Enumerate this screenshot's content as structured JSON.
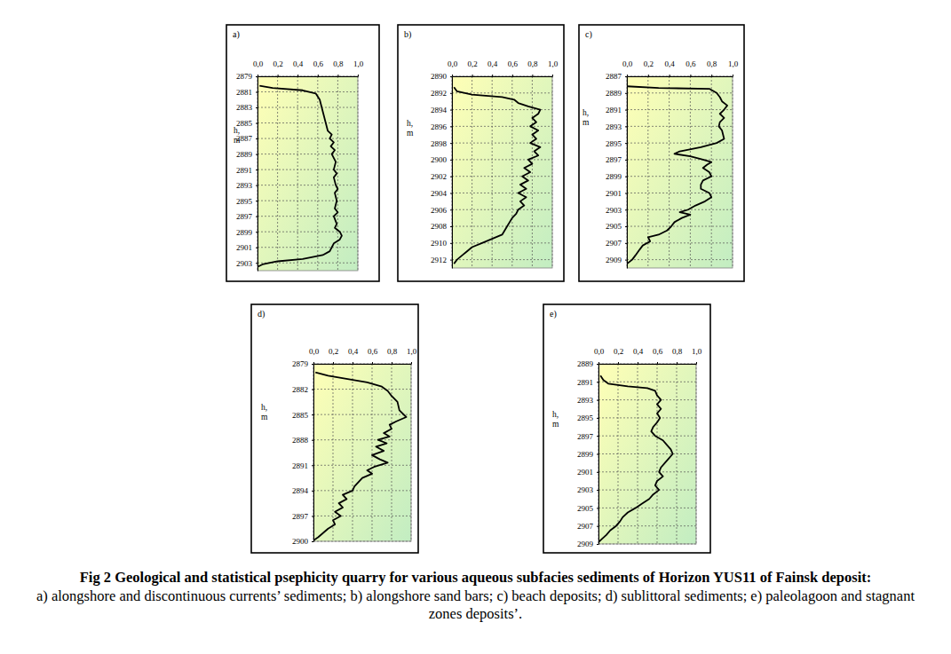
{
  "chart_data": [
    {
      "type": "line",
      "title": "a)",
      "y_label": "h,\nm",
      "color": "#000000",
      "grid": true,
      "xlim": [
        0,
        1
      ],
      "xticks": [
        {
          "value": 0,
          "label": "0,0"
        },
        {
          "value": 0.2,
          "label": "0,2"
        },
        {
          "value": 0.4,
          "label": "0,4"
        },
        {
          "value": 0.6,
          "label": "0,6"
        },
        {
          "value": 0.8,
          "label": "0,8"
        },
        {
          "value": 1,
          "label": "1,0"
        }
      ],
      "ylim": [
        2879,
        2904
      ],
      "yticks": [
        2879,
        2881,
        2883,
        2885,
        2887,
        2889,
        2891,
        2893,
        2895,
        2897,
        2899,
        2901,
        2903
      ],
      "x": [
        0.02,
        0.15,
        0.45,
        0.58,
        0.62,
        0.64,
        0.66,
        0.68,
        0.7,
        0.74,
        0.72,
        0.76,
        0.73,
        0.77,
        0.74,
        0.78,
        0.76,
        0.79,
        0.76,
        0.78,
        0.8,
        0.77,
        0.79,
        0.77,
        0.8,
        0.76,
        0.79,
        0.77,
        0.82,
        0.84,
        0.82,
        0.76,
        0.74,
        0.72,
        0.65,
        0.45,
        0.2,
        0.05,
        0.0
      ],
      "values": [
        2880.2,
        2880.5,
        2880.8,
        2881.2,
        2882,
        2883,
        2884,
        2885,
        2886,
        2886.5,
        2887,
        2887.5,
        2888,
        2888.5,
        2889,
        2890,
        2891,
        2891.5,
        2892,
        2893,
        2893.5,
        2894,
        2895,
        2896,
        2896.5,
        2897,
        2898,
        2898.5,
        2899,
        2899.5,
        2900,
        2900.5,
        2901,
        2901.5,
        2902,
        2902.5,
        2902.8,
        2903.2,
        2903.5
      ]
    },
    {
      "type": "line",
      "title": "b)",
      "y_label": "h,\nm",
      "color": "#000000",
      "grid": true,
      "xlim": [
        0,
        1
      ],
      "xticks": [
        {
          "value": 0,
          "label": "0,0"
        },
        {
          "value": 0.2,
          "label": "0,2"
        },
        {
          "value": 0.4,
          "label": "0,4"
        },
        {
          "value": 0.6,
          "label": "0,6"
        },
        {
          "value": 0.8,
          "label": "0,8"
        },
        {
          "value": 1,
          "label": "1,0"
        }
      ],
      "ylim": [
        2890,
        2913
      ],
      "yticks": [
        2890,
        2892,
        2894,
        2896,
        2898,
        2900,
        2902,
        2904,
        2906,
        2908,
        2910,
        2912
      ],
      "x": [
        0.02,
        0.05,
        0.2,
        0.5,
        0.62,
        0.66,
        0.76,
        0.88,
        0.86,
        0.8,
        0.84,
        0.78,
        0.86,
        0.8,
        0.84,
        0.78,
        0.88,
        0.82,
        0.86,
        0.76,
        0.8,
        0.72,
        0.78,
        0.7,
        0.76,
        0.68,
        0.74,
        0.66,
        0.74,
        0.68,
        0.72,
        0.66,
        0.64,
        0.6,
        0.55,
        0.5,
        0.4,
        0.3,
        0.2,
        0.15,
        0.1,
        0.05,
        0.02
      ],
      "values": [
        2891.3,
        2891.8,
        2892.2,
        2892.5,
        2892.8,
        2893.2,
        2893.6,
        2894,
        2894.5,
        2895,
        2895.5,
        2896,
        2896.5,
        2897,
        2897.5,
        2898,
        2898.5,
        2899,
        2899.5,
        2900,
        2900.5,
        2901,
        2901.5,
        2902,
        2902.5,
        2903,
        2903.5,
        2904,
        2904.5,
        2905,
        2905.5,
        2906,
        2906.5,
        2907,
        2908,
        2909,
        2909.5,
        2910,
        2910.5,
        2911,
        2911.5,
        2912,
        2912.5
      ]
    },
    {
      "type": "line",
      "title": "c)",
      "y_label": "h,\nm",
      "color": "#000000",
      "grid": true,
      "xlim": [
        0,
        1
      ],
      "xticks": [
        {
          "value": 0,
          "label": "0,0"
        },
        {
          "value": 0.2,
          "label": "0,2"
        },
        {
          "value": 0.4,
          "label": "0,4"
        },
        {
          "value": 0.6,
          "label": "0,6"
        },
        {
          "value": 0.8,
          "label": "0,8"
        },
        {
          "value": 1,
          "label": "1,0"
        }
      ],
      "ylim": [
        2887,
        2910
      ],
      "yticks": [
        2887,
        2889,
        2891,
        2893,
        2895,
        2897,
        2899,
        2901,
        2903,
        2905,
        2907,
        2909
      ],
      "x": [
        0.0,
        0.3,
        0.78,
        0.85,
        0.88,
        0.9,
        0.95,
        0.92,
        0.88,
        0.92,
        0.88,
        0.87,
        0.9,
        0.92,
        0.85,
        0.7,
        0.5,
        0.45,
        0.6,
        0.72,
        0.8,
        0.76,
        0.72,
        0.78,
        0.8,
        0.72,
        0.7,
        0.7,
        0.78,
        0.8,
        0.74,
        0.65,
        0.58,
        0.5,
        0.6,
        0.52,
        0.45,
        0.42,
        0.38,
        0.3,
        0.2,
        0.22,
        0.15,
        0.12,
        0.08,
        0.05,
        0.0
      ],
      "values": [
        2888.2,
        2888.4,
        2888.5,
        2889,
        2889.5,
        2890,
        2890.5,
        2891,
        2891.5,
        2892,
        2892.5,
        2893,
        2893.5,
        2894.5,
        2895,
        2895.5,
        2896,
        2896.3,
        2896.6,
        2897,
        2897.3,
        2897.6,
        2898,
        2898.5,
        2899,
        2899.5,
        2900,
        2900.5,
        2901,
        2901.5,
        2902,
        2902.5,
        2903,
        2903.3,
        2903.6,
        2904,
        2904.5,
        2905,
        2905.5,
        2906,
        2906.3,
        2906.8,
        2907.3,
        2907.8,
        2908.5,
        2909,
        2909.5
      ]
    },
    {
      "type": "line",
      "title": "d)",
      "y_label": "h,\nm",
      "color": "#000000",
      "grid": true,
      "xlim": [
        0,
        1
      ],
      "xticks": [
        {
          "value": 0,
          "label": "0,0"
        },
        {
          "value": 0.2,
          "label": "0,2"
        },
        {
          "value": 0.4,
          "label": "0,4"
        },
        {
          "value": 0.6,
          "label": "0,6"
        },
        {
          "value": 0.8,
          "label": "0,8"
        },
        {
          "value": 1,
          "label": "1,0"
        }
      ],
      "ylim": [
        2879,
        2900
      ],
      "yticks": [
        2879,
        2882,
        2885,
        2888,
        2891,
        2894,
        2897,
        2900
      ],
      "x": [
        0.02,
        0.15,
        0.35,
        0.55,
        0.7,
        0.76,
        0.8,
        0.86,
        0.88,
        0.95,
        0.85,
        0.78,
        0.8,
        0.72,
        0.78,
        0.66,
        0.75,
        0.64,
        0.72,
        0.6,
        0.68,
        0.76,
        0.62,
        0.55,
        0.6,
        0.5,
        0.46,
        0.42,
        0.4,
        0.3,
        0.34,
        0.26,
        0.3,
        0.22,
        0.28,
        0.2,
        0.22,
        0.15,
        0.1,
        0.05,
        0.0
      ],
      "values": [
        2880,
        2880.4,
        2880.8,
        2881.2,
        2881.7,
        2882.2,
        2882.8,
        2883.5,
        2884.5,
        2885.3,
        2885.8,
        2886.2,
        2886.7,
        2887.2,
        2887.6,
        2888,
        2888.4,
        2888.8,
        2889.3,
        2889.8,
        2890.3,
        2890.7,
        2891.2,
        2891.6,
        2892,
        2892.5,
        2893,
        2893.5,
        2894,
        2894.5,
        2895,
        2895.5,
        2896,
        2896.5,
        2897,
        2897.5,
        2898,
        2898.5,
        2899,
        2899.5,
        2899.9
      ]
    },
    {
      "type": "line",
      "title": "e)",
      "y_label": "h,\nm",
      "color": "#000000",
      "grid": true,
      "xlim": [
        0,
        1
      ],
      "xticks": [
        {
          "value": 0,
          "label": "0,0"
        },
        {
          "value": 0.2,
          "label": "0,2"
        },
        {
          "value": 0.4,
          "label": "0,4"
        },
        {
          "value": 0.6,
          "label": "0,6"
        },
        {
          "value": 0.8,
          "label": "0,8"
        },
        {
          "value": 1,
          "label": "1,0"
        }
      ],
      "ylim": [
        2889,
        2909
      ],
      "yticks": [
        2889,
        2891,
        2893,
        2895,
        2897,
        2899,
        2901,
        2903,
        2905,
        2907,
        2909
      ],
      "x": [
        0.02,
        0.05,
        0.1,
        0.3,
        0.5,
        0.58,
        0.6,
        0.64,
        0.6,
        0.64,
        0.6,
        0.63,
        0.6,
        0.56,
        0.54,
        0.58,
        0.66,
        0.7,
        0.74,
        0.76,
        0.72,
        0.68,
        0.64,
        0.62,
        0.66,
        0.6,
        0.58,
        0.62,
        0.56,
        0.52,
        0.45,
        0.38,
        0.3,
        0.25,
        0.22,
        0.18,
        0.12,
        0.08,
        0.03,
        0.0
      ],
      "values": [
        2890.3,
        2890.8,
        2891.2,
        2891.5,
        2891.7,
        2892,
        2892.5,
        2893,
        2893.5,
        2894,
        2894.5,
        2895,
        2895.5,
        2896,
        2896.5,
        2897,
        2897.5,
        2898,
        2898.5,
        2899,
        2899.5,
        2900,
        2900.5,
        2901,
        2901.5,
        2902,
        2902.5,
        2903,
        2903.5,
        2904,
        2904.5,
        2905,
        2905.5,
        2906,
        2906.5,
        2907,
        2907.5,
        2908,
        2908.5,
        2908.8
      ]
    }
  ],
  "caption": {
    "title": "Fig 2 Geological and statistical psephicity quarry for various aqueous subfacies sediments of Horizon YUS11 of Fainsk deposit:",
    "text": "a) alongshore and discontinuous currents’ sediments; b) alongshore sand bars; c) beach deposits; d) sublittoral sediments; e) paleolagoon and stagnant zones deposits’."
  }
}
